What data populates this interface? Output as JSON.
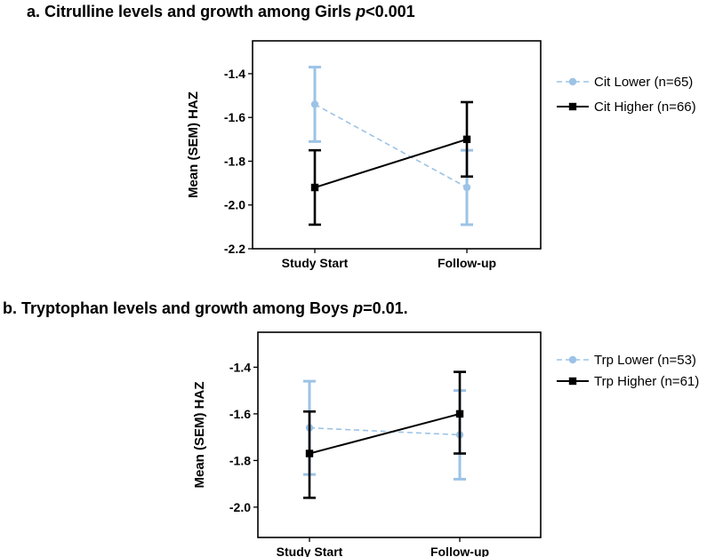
{
  "chart_data": [
    {
      "type": "line",
      "title_prefix": "a. Citrulline levels and growth among Girls ",
      "title_p": "p",
      "title_suffix": "<0.001",
      "xlabel": "",
      "ylabel": "Mean (SEM) HAZ",
      "categories": [
        "Study Start",
        "Follow-up"
      ],
      "ylim": [
        -2.2,
        -1.25
      ],
      "yticks": [
        -2.2,
        -2.0,
        -1.8,
        -1.6,
        -1.4
      ],
      "ytick_labels": [
        "-2.2",
        "-2.0",
        "-1.8",
        "-1.6",
        "-1.4"
      ],
      "legend_position": "right",
      "series": [
        {
          "name": "Cit Lower (n=65)",
          "color": "#9cc3e6",
          "style": "dashed",
          "marker": "circle",
          "values": [
            -1.54,
            -1.92
          ],
          "err_low": [
            -1.71,
            -2.09
          ],
          "err_high": [
            -1.37,
            -1.75
          ]
        },
        {
          "name": "Cit Higher (n=66)",
          "color": "#000000",
          "style": "solid",
          "marker": "square",
          "values": [
            -1.92,
            -1.7
          ],
          "err_low": [
            -2.09,
            -1.87
          ],
          "err_high": [
            -1.75,
            -1.53
          ]
        }
      ]
    },
    {
      "type": "line",
      "title_prefix": "b. Tryptophan levels and growth among Boys ",
      "title_p": "p",
      "title_suffix": "=0.01.",
      "xlabel": "",
      "ylabel": "Mean (SEM) HAZ",
      "categories": [
        "Study Start",
        "Follow-up"
      ],
      "ylim": [
        -2.13,
        -1.25
      ],
      "yticks": [
        -2.0,
        -1.8,
        -1.6,
        -1.4
      ],
      "ytick_labels": [
        "-2.0",
        "-1.8",
        "-1.6",
        "-1.4"
      ],
      "legend_position": "right",
      "series": [
        {
          "name": "Trp Lower (n=53)",
          "color": "#9cc3e6",
          "style": "dashed",
          "marker": "circle",
          "values": [
            -1.66,
            -1.69
          ],
          "err_low": [
            -1.86,
            -1.88
          ],
          "err_high": [
            -1.46,
            -1.5
          ]
        },
        {
          "name": "Trp Higher (n=61)",
          "color": "#000000",
          "style": "solid",
          "marker": "square",
          "values": [
            -1.77,
            -1.6
          ],
          "err_low": [
            -1.96,
            -1.77
          ],
          "err_high": [
            -1.59,
            -1.42
          ]
        }
      ]
    }
  ]
}
